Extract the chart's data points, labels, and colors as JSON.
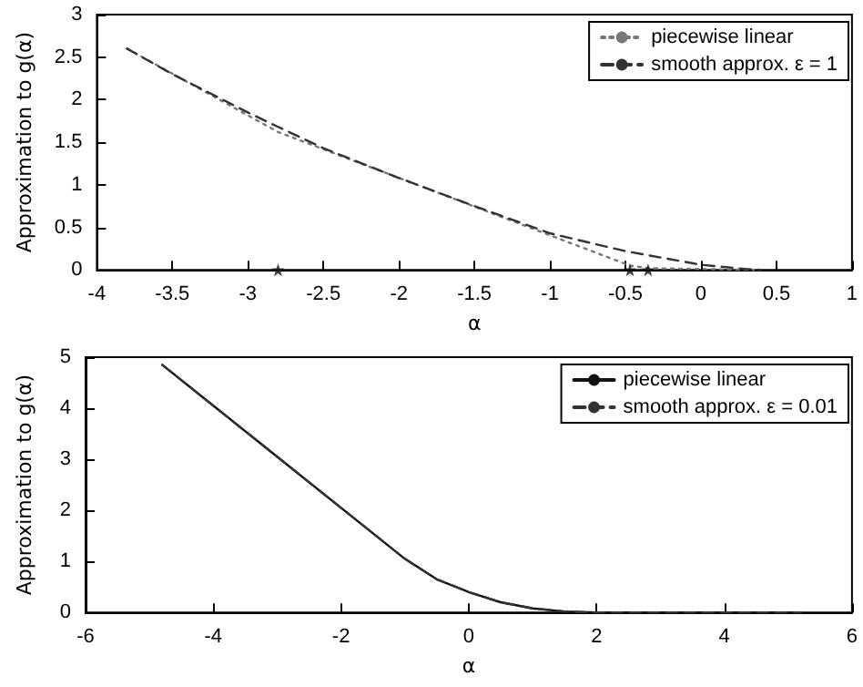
{
  "chart_data": [
    {
      "type": "line",
      "xlabel": "α",
      "ylabel": "Approximation to g(α)",
      "xlim": [
        -4,
        1
      ],
      "xticks": [
        -4,
        -3.5,
        -3,
        -2.5,
        -2,
        -1.5,
        -1,
        -0.5,
        0,
        0.5,
        1
      ],
      "ylim": [
        0,
        3
      ],
      "yticks": [
        0,
        0.5,
        1,
        1.5,
        2,
        2.5,
        3
      ],
      "grid": false,
      "legend": "top right",
      "series": [
        {
          "name": "piecewise linear",
          "color": "#777777",
          "line_style": "dotted",
          "x": [
            -3.8,
            -2.8,
            -0.47,
            -0.35,
            0.35
          ],
          "values": [
            2.6,
            1.62,
            0.05,
            0.02,
            0
          ]
        },
        {
          "name": "smooth approx. ε = 1",
          "color": "#333333",
          "line_style": "dashed",
          "x": [
            -3.8,
            -3.5,
            -3,
            -2.8,
            -2.5,
            -2,
            -1.5,
            -1,
            -0.5,
            0,
            0.3,
            0.4
          ],
          "values": [
            2.6,
            2.3,
            1.85,
            1.68,
            1.43,
            1.08,
            0.75,
            0.43,
            0.22,
            0.06,
            0.01,
            0
          ]
        },
        {
          "type": "scatter",
          "marker": "star",
          "color": "#111111",
          "x": [
            -2.8,
            -0.47,
            -0.35
          ],
          "values": [
            0,
            0,
            0
          ]
        }
      ]
    },
    {
      "type": "line",
      "xlabel": "α",
      "ylabel": "Approximation to g(α)",
      "xlim": [
        -6,
        6
      ],
      "xticks": [
        -6,
        -4,
        -2,
        0,
        2,
        4,
        6
      ],
      "ylim": [
        0,
        5
      ],
      "yticks": [
        0,
        1,
        2,
        3,
        4,
        5
      ],
      "grid": false,
      "legend": "top right",
      "series": [
        {
          "name": "piecewise linear",
          "color": "#111111",
          "line_style": "solid",
          "x": [
            -4.8,
            -4,
            -3,
            -2,
            -1.5,
            -1,
            -0.5,
            0,
            0.5,
            1,
            1.5,
            2,
            5.2
          ],
          "values": [
            4.85,
            4.05,
            3.05,
            2.05,
            1.55,
            1.05,
            0.65,
            0.4,
            0.2,
            0.08,
            0.02,
            0,
            0
          ]
        },
        {
          "name": "smooth approx. ε = 0.01",
          "color": "#333333",
          "line_style": "dashed",
          "x": [
            -4.8,
            -4,
            -3,
            -2,
            -1.5,
            -1,
            -0.5,
            0,
            0.5,
            1,
            1.5,
            2,
            5.2
          ],
          "values": [
            4.85,
            4.05,
            3.05,
            2.05,
            1.55,
            1.05,
            0.65,
            0.4,
            0.2,
            0.08,
            0.02,
            0,
            0
          ]
        }
      ]
    }
  ]
}
